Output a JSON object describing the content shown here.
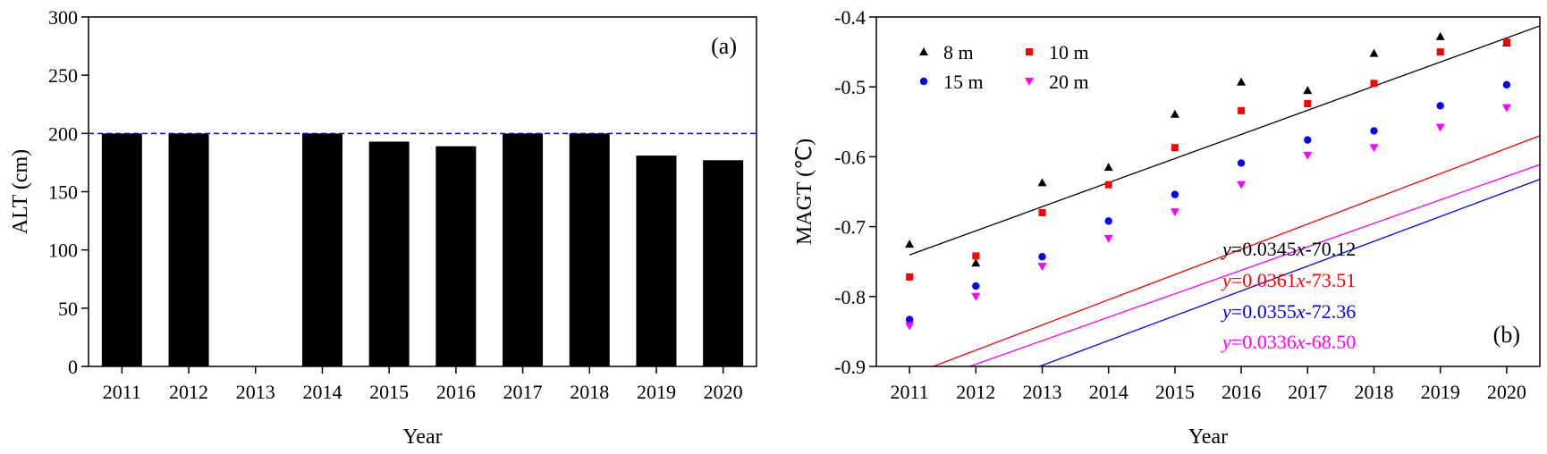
{
  "chart_data": [
    {
      "type": "bar",
      "panel_label": "(a)",
      "categories": [
        "2011",
        "2012",
        "2013",
        "2014",
        "2015",
        "2016",
        "2017",
        "2018",
        "2019",
        "2020"
      ],
      "values": [
        200,
        200,
        null,
        200,
        193,
        189,
        200,
        200,
        181,
        177
      ],
      "xlabel": "Year",
      "ylabel": "ALT (cm)",
      "ylim": [
        0,
        300
      ],
      "yticks": [
        0,
        50,
        100,
        150,
        200,
        250,
        300
      ],
      "bar_color": "#000000",
      "reference_line": {
        "y": 200,
        "style": "dashed",
        "color": "#0000ff"
      },
      "grid": false
    },
    {
      "type": "scatter",
      "panel_label": "(b)",
      "x": [
        2011,
        2012,
        2013,
        2014,
        2015,
        2016,
        2017,
        2018,
        2019,
        2020
      ],
      "xticks": [
        "2011",
        "2012",
        "2013",
        "2014",
        "2015",
        "2016",
        "2017",
        "2018",
        "2019",
        "2020"
      ],
      "xlabel": "Year",
      "ylabel": "MAGT (℃)",
      "ylim": [
        -0.9,
        -0.4
      ],
      "yticks": [
        "-0.9",
        "-0.8",
        "-0.7",
        "-0.6",
        "-0.5",
        "-0.4"
      ],
      "grid": false,
      "legend_position": "top-left",
      "series": [
        {
          "name": "8 m",
          "color": "#000000",
          "marker": "triangle-up",
          "values": [
            -0.725,
            -0.752,
            -0.637,
            -0.615,
            -0.539,
            -0.493,
            -0.505,
            -0.452,
            -0.428,
            -0.437
          ],
          "fit": {
            "slope": 0.0345,
            "intercept": -70.12,
            "slope_text": "0.0345",
            "intercept_text": "-70.12"
          }
        },
        {
          "name": "10 m",
          "color": "#ff0000",
          "marker": "square",
          "values": [
            -0.772,
            -0.742,
            -0.68,
            -0.64,
            -0.587,
            -0.534,
            -0.524,
            -0.495,
            -0.45,
            -0.436
          ],
          "fit": {
            "slope": 0.0361,
            "intercept": -73.51,
            "slope_text": "0.0361",
            "intercept_text": "-73.51"
          }
        },
        {
          "name": "15 m",
          "color": "#0000ff",
          "marker": "circle",
          "values": [
            -0.833,
            -0.785,
            -0.743,
            -0.692,
            -0.654,
            -0.609,
            -0.576,
            -0.563,
            -0.527,
            -0.497
          ],
          "fit": {
            "slope": 0.0355,
            "intercept": -72.36,
            "slope_text": "0.0355",
            "intercept_text": "-72.36"
          }
        },
        {
          "name": "20 m",
          "color": "#ff00ff",
          "marker": "triangle-down",
          "values": [
            -0.842,
            -0.8,
            -0.757,
            -0.717,
            -0.679,
            -0.64,
            -0.598,
            -0.587,
            -0.558,
            -0.53
          ],
          "fit": {
            "slope": 0.0336,
            "intercept": -68.5,
            "slope_text": "0.0336",
            "intercept_text": "-68.50"
          }
        }
      ]
    }
  ]
}
